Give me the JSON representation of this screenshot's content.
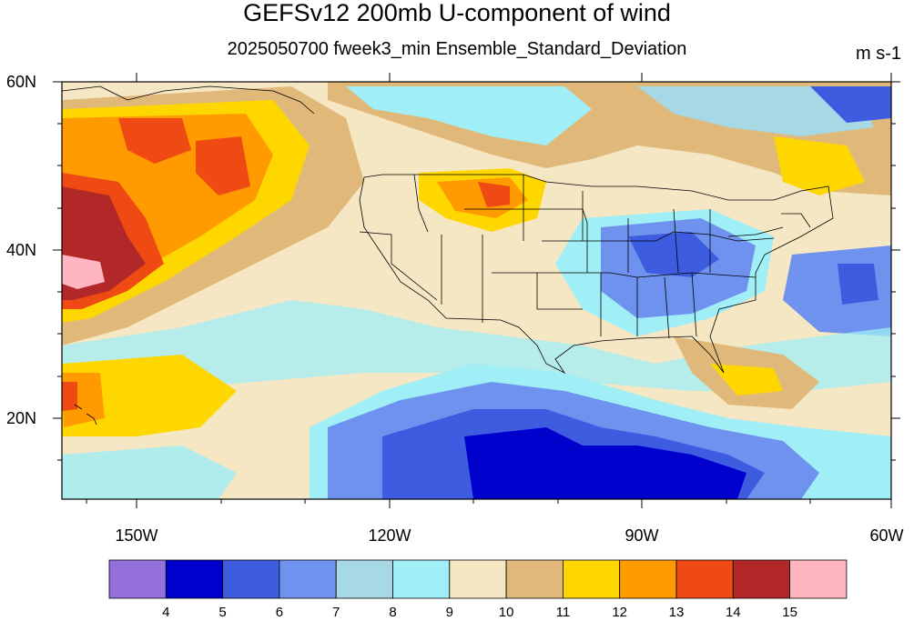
{
  "title": "GEFSv12 200mb U-component of wind",
  "subtitle": "2025050700 fweek3_min Ensemble_Standard_Deviation",
  "units": "m s-1",
  "map": {
    "lon_range": [
      -160,
      -60
    ],
    "lat_range": [
      10,
      60
    ],
    "lat_ticks": [
      {
        "value": 60,
        "label": "60N"
      },
      {
        "value": 40,
        "label": "40N"
      },
      {
        "value": 20,
        "label": "20N"
      }
    ],
    "lon_ticks": [
      {
        "value": -150,
        "label": "150W"
      },
      {
        "value": -120,
        "label": "120W"
      },
      {
        "value": -90,
        "label": "90W"
      },
      {
        "value": -60,
        "label": "60W"
      }
    ]
  },
  "colorbar": {
    "colors": [
      "#9370db",
      "#0000cd",
      "#3d5ce0",
      "#6f92ee",
      "#a6d8e6",
      "#a0eef6",
      "#f5e6c4",
      "#e0b97a",
      "#ffd700",
      "#ff9a00",
      "#f04a14",
      "#b22828",
      "#ffb6c1"
    ],
    "levels": [
      "4",
      "5",
      "6",
      "7",
      "8",
      "9",
      "10",
      "11",
      "12",
      "13",
      "14",
      "15"
    ]
  }
}
